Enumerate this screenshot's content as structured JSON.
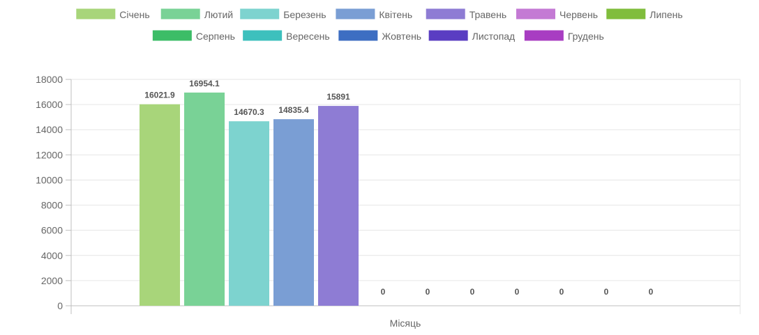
{
  "chart_data": {
    "type": "bar",
    "title": "",
    "xlabel": "Місяць",
    "ylabel": "",
    "ylim": [
      0,
      18000
    ],
    "yticks": [
      0,
      2000,
      4000,
      6000,
      8000,
      10000,
      12000,
      14000,
      16000,
      18000
    ],
    "grid": true,
    "legend_position": "top",
    "categories": [
      ""
    ],
    "series": [
      {
        "name": "Січень",
        "values": [
          16021.9
        ],
        "label": "16021.9",
        "color": "#a8d57a"
      },
      {
        "name": "Лютий",
        "values": [
          16954.1
        ],
        "label": "16954.1",
        "color": "#79d296"
      },
      {
        "name": "Березень",
        "values": [
          14670.3
        ],
        "label": "14670.3",
        "color": "#7dd3cf"
      },
      {
        "name": "Квітень",
        "values": [
          14835.4
        ],
        "label": "14835.4",
        "color": "#7a9ed4"
      },
      {
        "name": "Травень",
        "values": [
          15891
        ],
        "label": "15891",
        "color": "#8e7cd4"
      },
      {
        "name": "Червень",
        "values": [
          0
        ],
        "label": "0",
        "color": "#c47ad4"
      },
      {
        "name": "Липень",
        "values": [
          0
        ],
        "label": "0",
        "color": "#80bd3c"
      },
      {
        "name": "Серпень",
        "values": [
          0
        ],
        "label": "0",
        "color": "#3cbd67"
      },
      {
        "name": "Вересень",
        "values": [
          0
        ],
        "label": "0",
        "color": "#3dc0bd"
      },
      {
        "name": "Жовтень",
        "values": [
          0
        ],
        "label": "0",
        "color": "#3d6ec2"
      },
      {
        "name": "Листопад",
        "values": [
          0
        ],
        "label": "0",
        "color": "#5a3dc2"
      },
      {
        "name": "Грудень",
        "values": [
          0
        ],
        "label": "0",
        "color": "#a83dc2"
      }
    ]
  }
}
